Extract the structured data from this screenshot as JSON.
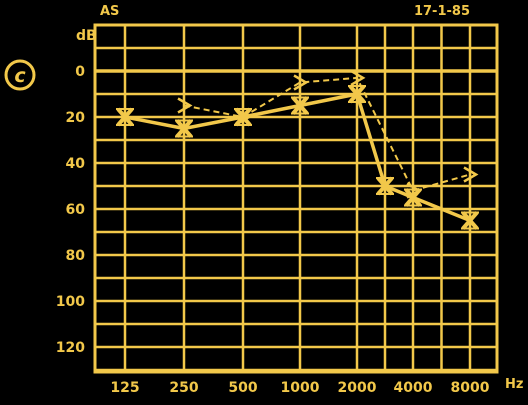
{
  "panel_label": "c",
  "ear_label": "AS",
  "date": "17-1-85",
  "colors": {
    "background": "#000000",
    "ink": "#f2c84a"
  },
  "chart_data": {
    "type": "line",
    "title": "",
    "ylabel": "dB",
    "xlabel": "Hz",
    "x_categories": [
      "125",
      "250",
      "500",
      "1000",
      "2000",
      "4000",
      "8000"
    ],
    "x_ticks": [
      125,
      250,
      500,
      1000,
      2000,
      3000,
      4000,
      6000,
      8000
    ],
    "y_tick_labels": [
      "0",
      "20",
      "40",
      "60",
      "80",
      "100",
      "120"
    ],
    "ylim": [
      -10,
      130
    ],
    "y_inverted": true,
    "grid": true,
    "series": [
      {
        "name": "",
        "style": "solid",
        "marker": "x",
        "x": [
          125,
          250,
          500,
          1000,
          2000,
          3000,
          4000,
          8000
        ],
        "y": [
          20,
          25,
          20,
          15,
          10,
          50,
          55,
          65
        ]
      },
      {
        "name": "",
        "style": "dashed",
        "marker": ">",
        "x": [
          250,
          500,
          1000,
          2000,
          4000,
          8000
        ],
        "y": [
          15,
          20,
          5,
          3,
          52,
          45
        ]
      }
    ]
  }
}
